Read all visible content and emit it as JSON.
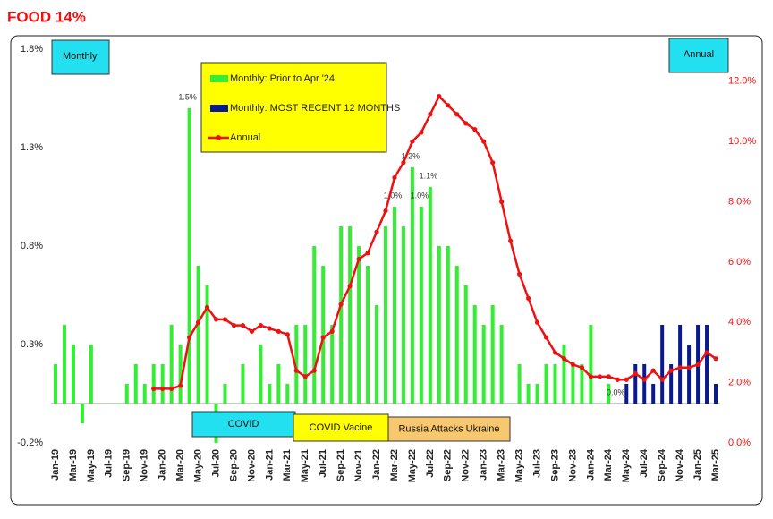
{
  "chart_data": {
    "type": "bar",
    "title": "FOOD  14%",
    "categories": [
      "Jan-19",
      null,
      "Mar-19",
      null,
      "May-19",
      null,
      "Jul-19",
      null,
      "Sep-19",
      null,
      "Nov-19",
      null,
      "Jan-20",
      null,
      "Mar-20",
      null,
      "May-20",
      null,
      "Jul-20",
      null,
      "Sep-20",
      null,
      "Nov-20",
      null,
      "Jan-21",
      null,
      "Mar-21",
      null,
      "May-21",
      null,
      "Jul-21",
      null,
      "Sep-21",
      null,
      "Nov-21",
      null,
      "Jan-22",
      null,
      "Mar-22",
      null,
      "May-22",
      null,
      "Jul-22",
      null,
      "Sep-22",
      null,
      "Nov-22",
      null,
      "Jan-23",
      null,
      "Mar-23",
      null,
      "May-23",
      null,
      "Jul-23",
      null,
      "Sep-23",
      null,
      "Nov-23",
      null,
      "Jan-24",
      null,
      "Mar-24",
      null,
      "May-24",
      null,
      "Jul-24",
      null,
      "Sep-24",
      null,
      "Nov-24",
      null,
      "Jan-25",
      null,
      "Mar-25"
    ],
    "series": [
      {
        "name": "Monthly: Prior to Apr '24",
        "type": "bar",
        "color": "#33ee33",
        "values": [
          0.2,
          0.4,
          0.3,
          -0.1,
          0.3,
          0,
          0,
          0,
          0.1,
          0.2,
          0.1,
          0.2,
          0.2,
          0.4,
          0.3,
          1.5,
          0.7,
          0.6,
          -0.2,
          0.1,
          0,
          0.2,
          0,
          0.3,
          0.1,
          0.2,
          0.1,
          0.4,
          0.4,
          0.8,
          0.7,
          0.4,
          0.9,
          0.9,
          0.8,
          0.7,
          0.5,
          0.9,
          1.0,
          0.9,
          1.2,
          1.0,
          1.1,
          0.8,
          0.8,
          0.7,
          0.6,
          0.5,
          0.4,
          0.5,
          0.4,
          0,
          0.2,
          0.1,
          0.1,
          0.2,
          0.2,
          0.3,
          0.2,
          0.2,
          0.4,
          0,
          0.1,
          null,
          null,
          null,
          null,
          null,
          null,
          null,
          null,
          null,
          null,
          null,
          null
        ],
        "value_labels": [
          null,
          null,
          null,
          null,
          null,
          null,
          null,
          null,
          null,
          null,
          null,
          null,
          null,
          null,
          null,
          "1.5%",
          null,
          null,
          null,
          null,
          null,
          null,
          null,
          null,
          null,
          null,
          null,
          null,
          null,
          null,
          null,
          null,
          null,
          null,
          null,
          null,
          null,
          null,
          "1.0%",
          null,
          "1.2%",
          "1.0%",
          "1.1%",
          null,
          null,
          null,
          null,
          null,
          null,
          null,
          null,
          null,
          null,
          null,
          null,
          null,
          null,
          null,
          null,
          null,
          null,
          null,
          null,
          null,
          null,
          null,
          null,
          null,
          null,
          null,
          null,
          null,
          null,
          null,
          null
        ]
      },
      {
        "name": "Monthly: MOST RECENT 12 MONTHS",
        "type": "bar",
        "color": "#0a1a8c",
        "values": [
          null,
          null,
          null,
          null,
          null,
          null,
          null,
          null,
          null,
          null,
          null,
          null,
          null,
          null,
          null,
          null,
          null,
          null,
          null,
          null,
          null,
          null,
          null,
          null,
          null,
          null,
          null,
          null,
          null,
          null,
          null,
          null,
          null,
          null,
          null,
          null,
          null,
          null,
          null,
          null,
          null,
          null,
          null,
          null,
          null,
          null,
          null,
          null,
          null,
          null,
          null,
          null,
          null,
          null,
          null,
          null,
          null,
          null,
          null,
          null,
          null,
          null,
          null,
          0.0,
          0.1,
          0.2,
          0.2,
          0.1,
          0.4,
          0.2,
          0.4,
          0.3,
          0.4,
          0.4,
          0.1
        ],
        "value_labels": [
          null,
          null,
          null,
          null,
          null,
          null,
          null,
          null,
          null,
          null,
          null,
          null,
          null,
          null,
          null,
          null,
          null,
          null,
          null,
          null,
          null,
          null,
          null,
          null,
          null,
          null,
          null,
          null,
          null,
          null,
          null,
          null,
          null,
          null,
          null,
          null,
          null,
          null,
          null,
          null,
          null,
          null,
          null,
          null,
          null,
          null,
          null,
          null,
          null,
          null,
          null,
          null,
          null,
          null,
          null,
          null,
          null,
          null,
          null,
          null,
          null,
          null,
          null,
          "0.0%",
          null,
          null,
          null,
          null,
          null,
          null,
          null,
          null,
          null,
          null,
          null
        ]
      },
      {
        "name": "Annual",
        "type": "line",
        "axis": "y2",
        "color": "#ee1111",
        "values": [
          null,
          null,
          null,
          null,
          null,
          null,
          null,
          null,
          null,
          null,
          null,
          1.8,
          1.8,
          1.8,
          1.9,
          3.5,
          4.0,
          4.5,
          4.1,
          4.1,
          3.9,
          3.9,
          3.7,
          3.9,
          3.8,
          3.7,
          3.6,
          2.4,
          2.2,
          2.4,
          3.5,
          3.7,
          4.6,
          5.2,
          6.1,
          6.3,
          7.0,
          7.7,
          8.8,
          9.3,
          10.0,
          10.3,
          10.9,
          11.5,
          11.2,
          10.9,
          10.6,
          10.4,
          10.0,
          9.3,
          8.0,
          6.7,
          5.6,
          4.8,
          4.0,
          3.5,
          3.0,
          2.8,
          2.6,
          2.5,
          2.2,
          2.2,
          2.2,
          2.1,
          2.1,
          2.3,
          2.1,
          2.4,
          2.1,
          2.4,
          2.5,
          2.5,
          2.6,
          3.0,
          2.8
        ]
      }
    ],
    "ylim": [
      -0.2,
      1.8
    ],
    "yticks": [
      {
        "value": -0.2,
        "label": "-0.2%"
      },
      {
        "value": 0.3,
        "label": "0.3%"
      },
      {
        "value": 0.8,
        "label": "0.8%"
      },
      {
        "value": 1.3,
        "label": "1.3%"
      },
      {
        "value": 1.8,
        "label": "1.8%"
      }
    ],
    "y2lim": [
      0,
      13.06
    ],
    "y2ticks": [
      {
        "value": 0,
        "label": "0.0%"
      },
      {
        "value": 2,
        "label": "2.0%"
      },
      {
        "value": 4,
        "label": "4.0%"
      },
      {
        "value": 6,
        "label": "6.0%"
      },
      {
        "value": 8,
        "label": "8.0%"
      },
      {
        "value": 10,
        "label": "10.0%"
      },
      {
        "value": 12,
        "label": "12.0%"
      }
    ],
    "annotations": [
      "Monthly",
      "Annual",
      "COVID",
      "COVID Vacine",
      "Russia Attacks Ukraine"
    ],
    "grid": false
  }
}
